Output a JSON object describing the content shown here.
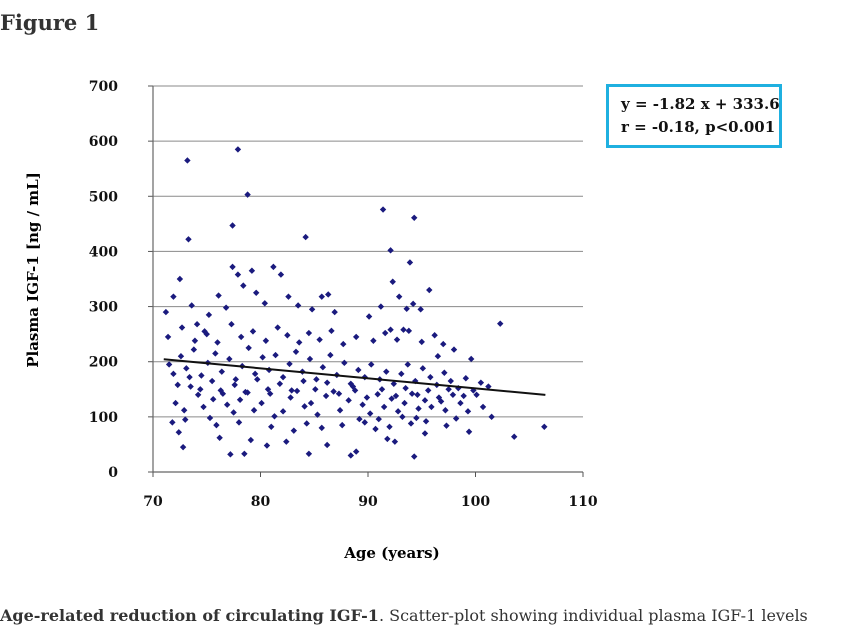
{
  "figure_label": "Figure 1",
  "caption": {
    "bold": "Age-related reduction of circulating IGF-1",
    "rest": ". Scatter-plot showing individual plasma IGF-1 levels"
  },
  "chart_data": {
    "type": "scatter",
    "title": "",
    "xlabel": "Age (years)",
    "ylabel": "Plasma IGF-1 [ng / mL]",
    "xlim": [
      70,
      110
    ],
    "ylim": [
      0,
      700
    ],
    "xticks": [
      "70",
      "80",
      "90",
      "100",
      "110"
    ],
    "yticks": [
      "0",
      "100",
      "200",
      "300",
      "400",
      "500",
      "600",
      "700"
    ],
    "grid": "horizontal",
    "point_color": "#1a1a7e",
    "regression": {
      "x": [
        71,
        106.5
      ],
      "y": [
        204.4,
        139.8
      ]
    },
    "annotation": [
      "y = -1.82 x + 333.6",
      "r = -0.18,   p<0.001"
    ],
    "annotation_border_color": "#1fb0e0",
    "points": [
      [
        73.2,
        565
      ],
      [
        77.9,
        585
      ],
      [
        78.8,
        503
      ],
      [
        77.4,
        447
      ],
      [
        73.3,
        422
      ],
      [
        84.2,
        426
      ],
      [
        91.4,
        476
      ],
      [
        94.3,
        461
      ],
      [
        92.1,
        402
      ],
      [
        93.9,
        380
      ],
      [
        102.3,
        269
      ],
      [
        103.6,
        64
      ],
      [
        106.4,
        82
      ],
      [
        88.4,
        30
      ],
      [
        77.2,
        32
      ],
      [
        78.5,
        33
      ],
      [
        94.3,
        28
      ],
      [
        84.5,
        33
      ],
      [
        72.4,
        72
      ],
      [
        72.8,
        45
      ],
      [
        71.8,
        90
      ],
      [
        75.3,
        98
      ],
      [
        76.2,
        62
      ],
      [
        79.1,
        58
      ],
      [
        80.6,
        48
      ],
      [
        82.4,
        55
      ],
      [
        83.1,
        75
      ],
      [
        85.7,
        80
      ],
      [
        86.2,
        49
      ],
      [
        88.9,
        37
      ],
      [
        89.7,
        90
      ],
      [
        91.8,
        60
      ],
      [
        92.5,
        55
      ],
      [
        95.3,
        70
      ],
      [
        97.3,
        84
      ],
      [
        98.2,
        97
      ],
      [
        99.4,
        73
      ],
      [
        101.5,
        100
      ],
      [
        71.2,
        290
      ],
      [
        71.9,
        318
      ],
      [
        72.5,
        350
      ],
      [
        73.6,
        302
      ],
      [
        74.1,
        268
      ],
      [
        74.8,
        255
      ],
      [
        75.2,
        285
      ],
      [
        76.1,
        320
      ],
      [
        76.8,
        298
      ],
      [
        77.4,
        372
      ],
      [
        77.9,
        358
      ],
      [
        78.4,
        338
      ],
      [
        79.2,
        365
      ],
      [
        79.6,
        325
      ],
      [
        80.4,
        306
      ],
      [
        81.2,
        372
      ],
      [
        81.9,
        358
      ],
      [
        82.6,
        318
      ],
      [
        83.5,
        302
      ],
      [
        84.8,
        295
      ],
      [
        85.7,
        318
      ],
      [
        86.3,
        322
      ],
      [
        86.9,
        290
      ],
      [
        90.1,
        282
      ],
      [
        91.2,
        300
      ],
      [
        92.3,
        345
      ],
      [
        92.9,
        318
      ],
      [
        93.6,
        296
      ],
      [
        94.2,
        305
      ],
      [
        94.9,
        295
      ],
      [
        95.7,
        330
      ],
      [
        93.3,
        258
      ],
      [
        92.1,
        258
      ],
      [
        72.1,
        125
      ],
      [
        72.9,
        112
      ],
      [
        73.5,
        155
      ],
      [
        74.2,
        140
      ],
      [
        74.7,
        118
      ],
      [
        75.6,
        132
      ],
      [
        76.3,
        148
      ],
      [
        76.9,
        122
      ],
      [
        77.5,
        108
      ],
      [
        78.1,
        131
      ],
      [
        78.8,
        144
      ],
      [
        79.4,
        112
      ],
      [
        80.1,
        125
      ],
      [
        80.7,
        150
      ],
      [
        81.3,
        101
      ],
      [
        82.1,
        110
      ],
      [
        82.8,
        135
      ],
      [
        83.4,
        147
      ],
      [
        84.1,
        119
      ],
      [
        84.7,
        125
      ],
      [
        85.3,
        104
      ],
      [
        86.1,
        138
      ],
      [
        86.8,
        146
      ],
      [
        87.4,
        112
      ],
      [
        88.2,
        130
      ],
      [
        88.8,
        148
      ],
      [
        89.5,
        122
      ],
      [
        90.2,
        106
      ],
      [
        90.9,
        141
      ],
      [
        91.5,
        118
      ],
      [
        92.2,
        133
      ],
      [
        92.8,
        110
      ],
      [
        93.4,
        125
      ],
      [
        94.1,
        142
      ],
      [
        94.7,
        115
      ],
      [
        95.3,
        130
      ],
      [
        95.9,
        118
      ],
      [
        96.6,
        135
      ],
      [
        97.2,
        112
      ],
      [
        97.9,
        140
      ],
      [
        98.6,
        125
      ],
      [
        99.3,
        110
      ],
      [
        100.1,
        140
      ],
      [
        100.7,
        118
      ],
      [
        71.5,
        195
      ],
      [
        71.9,
        178
      ],
      [
        72.6,
        210
      ],
      [
        73.1,
        188
      ],
      [
        73.8,
        222
      ],
      [
        74.5,
        175
      ],
      [
        75.1,
        198
      ],
      [
        75.8,
        215
      ],
      [
        76.4,
        182
      ],
      [
        77.1,
        205
      ],
      [
        77.7,
        168
      ],
      [
        78.3,
        192
      ],
      [
        78.9,
        225
      ],
      [
        79.5,
        178
      ],
      [
        80.2,
        208
      ],
      [
        80.8,
        185
      ],
      [
        81.4,
        212
      ],
      [
        82.1,
        172
      ],
      [
        82.7,
        196
      ],
      [
        83.3,
        218
      ],
      [
        83.9,
        182
      ],
      [
        84.6,
        205
      ],
      [
        85.2,
        168
      ],
      [
        85.8,
        190
      ],
      [
        86.5,
        212
      ],
      [
        87.1,
        176
      ],
      [
        87.8,
        198
      ],
      [
        88.4,
        160
      ],
      [
        89.1,
        185
      ],
      [
        89.7,
        172
      ],
      [
        90.3,
        195
      ],
      [
        91.1,
        168
      ],
      [
        91.7,
        182
      ],
      [
        92.4,
        160
      ],
      [
        93.1,
        178
      ],
      [
        93.7,
        195
      ],
      [
        94.4,
        165
      ],
      [
        95.1,
        188
      ],
      [
        95.8,
        172
      ],
      [
        96.4,
        158
      ],
      [
        97.1,
        180
      ],
      [
        97.7,
        165
      ],
      [
        98.4,
        152
      ],
      [
        99.1,
        170
      ],
      [
        99.8,
        148
      ],
      [
        100.5,
        162
      ],
      [
        101.2,
        155
      ],
      [
        72.3,
        158
      ],
      [
        73.4,
        172
      ],
      [
        74.4,
        150
      ],
      [
        75.5,
        165
      ],
      [
        76.5,
        142
      ],
      [
        77.6,
        158
      ],
      [
        78.6,
        145
      ],
      [
        79.7,
        168
      ],
      [
        80.9,
        142
      ],
      [
        81.8,
        160
      ],
      [
        82.9,
        148
      ],
      [
        84.0,
        165
      ],
      [
        85.1,
        150
      ],
      [
        86.2,
        162
      ],
      [
        87.3,
        142
      ],
      [
        88.6,
        155
      ],
      [
        89.9,
        135
      ],
      [
        91.3,
        150
      ],
      [
        92.6,
        138
      ],
      [
        93.5,
        152
      ],
      [
        94.6,
        140
      ],
      [
        95.6,
        148
      ],
      [
        96.8,
        128
      ],
      [
        97.5,
        150
      ],
      [
        98.9,
        138
      ],
      [
        71.4,
        245
      ],
      [
        72.7,
        262
      ],
      [
        73.9,
        238
      ],
      [
        75.0,
        250
      ],
      [
        76.0,
        235
      ],
      [
        77.3,
        268
      ],
      [
        78.2,
        245
      ],
      [
        79.3,
        255
      ],
      [
        80.5,
        238
      ],
      [
        81.6,
        262
      ],
      [
        82.5,
        248
      ],
      [
        83.6,
        235
      ],
      [
        84.5,
        252
      ],
      [
        85.5,
        240
      ],
      [
        86.6,
        256
      ],
      [
        87.7,
        232
      ],
      [
        88.9,
        245
      ],
      [
        90.5,
        238
      ],
      [
        91.6,
        252
      ],
      [
        92.7,
        240
      ],
      [
        93.8,
        256
      ],
      [
        95.0,
        236
      ],
      [
        96.2,
        248
      ],
      [
        97.0,
        232
      ],
      [
        98.0,
        222
      ],
      [
        96.5,
        210
      ],
      [
        99.6,
        205
      ],
      [
        95.4,
        92
      ],
      [
        94.0,
        88
      ],
      [
        92.0,
        82
      ],
      [
        90.7,
        78
      ],
      [
        87.6,
        85
      ],
      [
        84.3,
        88
      ],
      [
        81.0,
        82
      ],
      [
        78.0,
        90
      ],
      [
        75.9,
        85
      ],
      [
        73.0,
        95
      ],
      [
        93.2,
        100
      ],
      [
        94.5,
        98
      ],
      [
        91.0,
        96
      ],
      [
        89.2,
        96
      ]
    ]
  }
}
